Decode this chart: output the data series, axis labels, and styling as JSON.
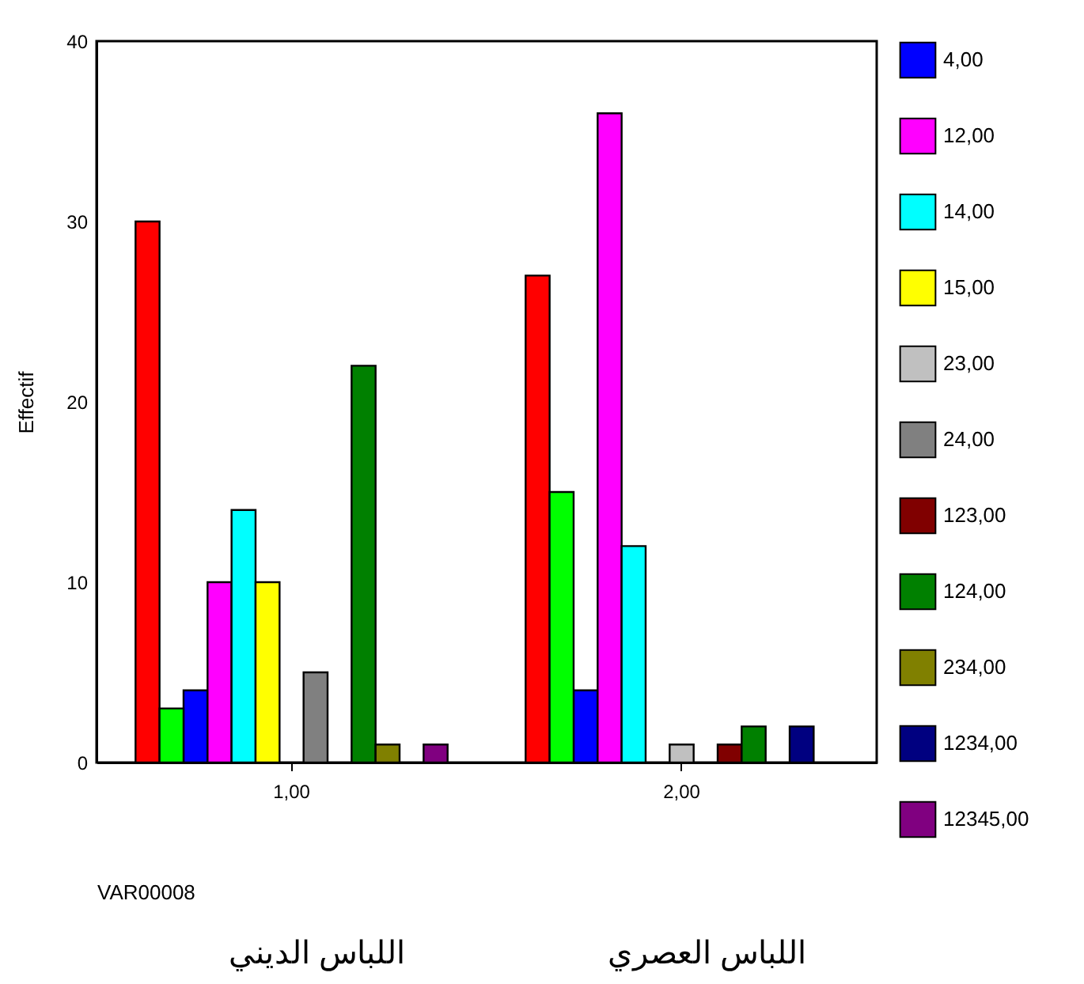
{
  "chart_data": {
    "type": "bar",
    "xlabel": "VAR00008",
    "ylabel": "Effectif",
    "categories": [
      "1,00",
      "2,00"
    ],
    "series": [
      {
        "color": "#ff0000",
        "values": [
          30,
          27
        ]
      },
      {
        "color": "#00ff00",
        "values": [
          3,
          15
        ]
      },
      {
        "name": "4,00",
        "color": "#0000ff",
        "values": [
          4,
          4
        ]
      },
      {
        "name": "12,00",
        "color": "#ff00ff",
        "values": [
          10,
          36
        ]
      },
      {
        "name": "14,00",
        "color": "#00ffff",
        "values": [
          14,
          12
        ]
      },
      {
        "name": "15,00",
        "color": "#ffff00",
        "values": [
          10,
          null
        ]
      },
      {
        "name": "23,00",
        "color": "#c0c0c0",
        "values": [
          null,
          1
        ]
      },
      {
        "name": "24,00",
        "color": "#808080",
        "values": [
          5,
          null
        ]
      },
      {
        "name": "123,00",
        "color": "#800000",
        "values": [
          null,
          1
        ]
      },
      {
        "name": "124,00",
        "color": "#008000",
        "values": [
          22,
          2
        ]
      },
      {
        "name": "234,00",
        "color": "#808000",
        "values": [
          1,
          null
        ]
      },
      {
        "name": "1234,00",
        "color": "#000080",
        "values": [
          null,
          2
        ]
      },
      {
        "name": "12345,00",
        "color": "#800080",
        "values": [
          1,
          null
        ]
      }
    ],
    "ylim": [
      0,
      40
    ],
    "yticks": [
      0,
      10,
      20,
      30,
      40
    ],
    "grid": false,
    "legend": "right",
    "annotations": [
      "اللباس الديني",
      "اللباس العصري"
    ]
  }
}
